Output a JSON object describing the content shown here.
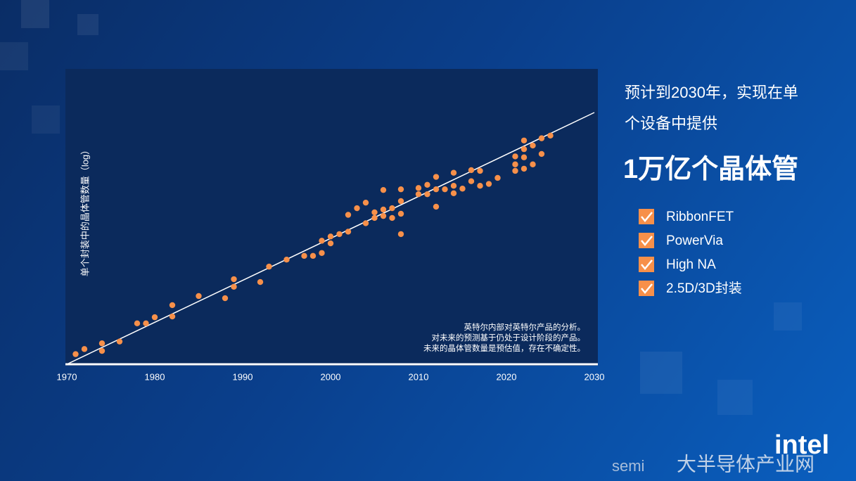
{
  "chart_data": {
    "type": "scatter",
    "ylabel": "单个封装中的晶体管数量（log）",
    "annotation": [
      "英特尔内部对英特尔产品的分析。",
      "对未来的预测基于仍处于设计阶段的产品。",
      "未来的晶体管数量是预估值，存在不确定性。"
    ],
    "x": [
      1971,
      1972,
      1974,
      1974,
      1976,
      1978,
      1979,
      1980,
      1982,
      1982,
      1985,
      1988,
      1989,
      1989,
      1992,
      1993,
      1995,
      1997,
      1998,
      1999,
      1999,
      2000,
      2000,
      2001,
      2002,
      2002,
      2003,
      2004,
      2004,
      2005,
      2005,
      2006,
      2006,
      2006,
      2007,
      2007,
      2008,
      2008,
      2008,
      2008,
      2010,
      2010,
      2011,
      2011,
      2012,
      2012,
      2012,
      2013,
      2014,
      2014,
      2014,
      2015,
      2016,
      2016,
      2017,
      2017,
      2018,
      2019,
      2021,
      2021,
      2021,
      2022,
      2022,
      2022,
      2022,
      2023,
      2023,
      2024,
      2024,
      2025
    ],
    "values": [
      2300,
      3500,
      5600,
      3000,
      6500,
      29000,
      29000,
      48000,
      130000,
      51000,
      275000,
      230000,
      1100000,
      590000,
      870000,
      3100000,
      5500000,
      7500000,
      7500000,
      9500000,
      26000000,
      21000000,
      37000000,
      45000000,
      55000000,
      220000000,
      380000000,
      110000000,
      600000000,
      170000000,
      270000000,
      340000000,
      200000000,
      1700000000,
      170000000,
      380000000,
      680000000,
      240000000,
      45000000,
      1800000000,
      2000000000,
      1200000000,
      2600000000,
      1200000000,
      5000000000,
      1800000000,
      430000000,
      1800000000,
      7000000000,
      2400000000,
      1300000000,
      1900000000,
      8700000000,
      3500000000,
      8200000000,
      2400000000,
      2800000000,
      4600000000,
      27000000000,
      14000000000,
      8200000000,
      100000000000,
      49000000000,
      25000000000,
      9800000000,
      66000000000,
      14000000000,
      120000000000,
      33000000000,
      150000000000
    ],
    "color": "#f7904a",
    "trend": {
      "x": [
        1970,
        2030
      ],
      "values": [
        1000,
        1000000000000
      ],
      "color": "#ffffff"
    },
    "xlim": [
      1970,
      2030
    ],
    "xticks": [
      1970,
      1980,
      1990,
      2000,
      2010,
      2020,
      2030
    ],
    "ylim": [
      1000,
      1000000000000
    ],
    "log_scale": true
  },
  "headline": [
    "预计到2030年，实现在单",
    "个设备中提供"
  ],
  "highlight": "1万亿个晶体管",
  "features": [
    "RibbonFET",
    "PowerVia",
    "High NA",
    "2.5D/3D封装"
  ],
  "logo": "intel",
  "watermark": [
    "semi",
    "大半导体产业网"
  ]
}
